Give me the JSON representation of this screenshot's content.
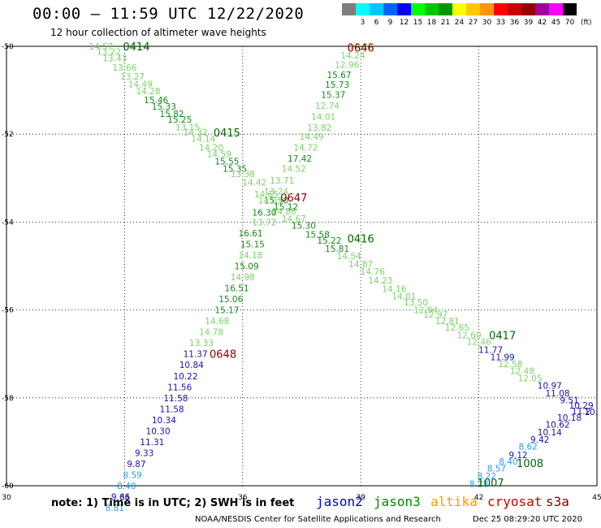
{
  "header": {
    "title": "00:00 – 11:59 UTC 12/22/2020",
    "subtitle": "12 hour collection of altimeter wave heights"
  },
  "legend_scale": {
    "unit": "(ft)",
    "bins": [
      {
        "label": "",
        "color": "#7f7f7f"
      },
      {
        "label": "3",
        "color": "#00ffff"
      },
      {
        "label": "6",
        "color": "#00c8ff"
      },
      {
        "label": "9",
        "color": "#0064ff"
      },
      {
        "label": "12",
        "color": "#0000ff"
      },
      {
        "label": "15",
        "color": "#00ff00"
      },
      {
        "label": "18",
        "color": "#00c800"
      },
      {
        "label": "21",
        "color": "#009600"
      },
      {
        "label": "24",
        "color": "#ffff00"
      },
      {
        "label": "27",
        "color": "#ffc800"
      },
      {
        "label": "30",
        "color": "#ff9600"
      },
      {
        "label": "33",
        "color": "#ff0000"
      },
      {
        "label": "36",
        "color": "#c80000"
      },
      {
        "label": "39",
        "color": "#960000"
      },
      {
        "label": "42",
        "color": "#a000a0"
      },
      {
        "label": "45",
        "color": "#ff00ff"
      },
      {
        "label": "70",
        "color": "#000000"
      }
    ]
  },
  "footer": {
    "note": "note: 1) Time is in UTC; 2) SWH is in feet",
    "satellites": [
      {
        "name": "jason2",
        "color": "#0000cc"
      },
      {
        "name": "jason3",
        "color": "#008800"
      },
      {
        "name": "altika",
        "color": "#ff9900"
      },
      {
        "name": "cryosat",
        "color": "#cc0000"
      },
      {
        "name": "s3a",
        "color": "#880000"
      }
    ],
    "credit": "NOAA/NESDIS Center for Satellite Applications and Research",
    "timestamp": "Dec 25 08:29:20 UTC 2020"
  },
  "chart_data": {
    "type": "scatter",
    "x_range": [
      30,
      45
    ],
    "y_range": [
      -60,
      -50
    ],
    "x_ticks": [
      "30",
      "33",
      "36",
      "39",
      "42",
      "45"
    ],
    "y_ticks": [
      "-50",
      "-52",
      "-54",
      "-56",
      "-58",
      "-60"
    ],
    "grid": true,
    "colors": {
      "light": "#7cd36a",
      "green": "#168a1a",
      "blue": "#1a14a8",
      "cyan": "#2a9ee0",
      "time": "#8b0000",
      "time_green": "#006400"
    },
    "time_labels": [
      {
        "text": "0414",
        "x": 33.3,
        "y": -50.0,
        "c": "time_green"
      },
      {
        "text": "0415",
        "x": 35.6,
        "y": -51.96,
        "c": "time_green"
      },
      {
        "text": "0416",
        "x": 39.0,
        "y": -54.37,
        "c": "time_green"
      },
      {
        "text": "0417",
        "x": 42.6,
        "y": -56.57,
        "c": "time_green"
      },
      {
        "text": "0646",
        "x": 39.0,
        "y": -50.03,
        "c": "time"
      },
      {
        "text": "0647",
        "x": 37.3,
        "y": -53.44,
        "c": "time"
      },
      {
        "text": "0648",
        "x": 35.5,
        "y": -57.0,
        "c": "time"
      },
      {
        "text": "1008",
        "x": 43.3,
        "y": -59.48,
        "c": "time_green"
      },
      {
        "text": "1007",
        "x": 42.3,
        "y": -59.93,
        "c": "time_green"
      }
    ],
    "series": [
      {
        "name": "jason3",
        "points": [
          {
            "x": 32.4,
            "y": -50.0,
            "v": "14.57",
            "c": "light"
          },
          {
            "x": 32.6,
            "y": -50.12,
            "v": "13.22",
            "c": "light"
          },
          {
            "x": 32.75,
            "y": -50.27,
            "v": "13.43",
            "c": "light"
          },
          {
            "x": 33.0,
            "y": -50.48,
            "v": "13.66",
            "c": "light"
          },
          {
            "x": 33.2,
            "y": -50.68,
            "v": "13.27",
            "c": "light"
          },
          {
            "x": 33.4,
            "y": -50.86,
            "v": "14.49",
            "c": "light"
          },
          {
            "x": 33.6,
            "y": -51.02,
            "v": "14.28",
            "c": "light"
          },
          {
            "x": 33.8,
            "y": -51.22,
            "v": "15.46",
            "c": "green"
          },
          {
            "x": 34.0,
            "y": -51.37,
            "v": "15.33",
            "c": "green"
          },
          {
            "x": 34.2,
            "y": -51.53,
            "v": "15.82",
            "c": "green"
          },
          {
            "x": 34.4,
            "y": -51.66,
            "v": "15.25",
            "c": "green"
          },
          {
            "x": 34.6,
            "y": -51.84,
            "v": "13.15",
            "c": "light"
          },
          {
            "x": 34.8,
            "y": -51.95,
            "v": "14.32",
            "c": "light"
          },
          {
            "x": 35.0,
            "y": -52.1,
            "v": "14.14",
            "c": "light"
          },
          {
            "x": 35.2,
            "y": -52.3,
            "v": "14.20",
            "c": "light"
          },
          {
            "x": 35.4,
            "y": -52.45,
            "v": "14.59",
            "c": "light"
          },
          {
            "x": 35.6,
            "y": -52.62,
            "v": "15.55",
            "c": "green"
          },
          {
            "x": 35.8,
            "y": -52.78,
            "v": "15.35",
            "c": "green"
          },
          {
            "x": 36.0,
            "y": -52.9,
            "v": "13.38",
            "c": "light"
          },
          {
            "x": 36.3,
            "y": -53.1,
            "v": "14.42",
            "c": "light"
          },
          {
            "x": 36.6,
            "y": -53.36,
            "v": "14.65",
            "c": "light"
          },
          {
            "x": 36.85,
            "y": -53.5,
            "v": "15.30",
            "c": "green"
          },
          {
            "x": 37.05,
            "y": -53.75,
            "v": "14.86",
            "c": "light"
          },
          {
            "x": 37.3,
            "y": -53.92,
            "v": "14.67",
            "c": "light"
          },
          {
            "x": 37.55,
            "y": -54.08,
            "v": "15.30",
            "c": "green"
          },
          {
            "x": 37.9,
            "y": -54.28,
            "v": "15.58",
            "c": "green"
          },
          {
            "x": 38.2,
            "y": -54.42,
            "v": "15.22",
            "c": "green"
          },
          {
            "x": 38.4,
            "y": -54.6,
            "v": "15.81",
            "c": "green"
          },
          {
            "x": 38.7,
            "y": -54.77,
            "v": "14.54",
            "c": "light"
          },
          {
            "x": 39.0,
            "y": -54.95,
            "v": "14.87",
            "c": "light"
          },
          {
            "x": 39.3,
            "y": -55.12,
            "v": "14.76",
            "c": "light"
          },
          {
            "x": 39.5,
            "y": -55.32,
            "v": "14.23",
            "c": "light"
          },
          {
            "x": 39.85,
            "y": -55.52,
            "v": "14.16",
            "c": "light"
          },
          {
            "x": 40.1,
            "y": -55.68,
            "v": "14.01",
            "c": "light"
          },
          {
            "x": 40.4,
            "y": -55.82,
            "v": "13.50",
            "c": "light"
          },
          {
            "x": 40.65,
            "y": -56.0,
            "v": "12.94",
            "c": "light"
          },
          {
            "x": 40.9,
            "y": -56.1,
            "v": "12.97",
            "c": "light"
          },
          {
            "x": 41.2,
            "y": -56.25,
            "v": "12.81",
            "c": "light"
          },
          {
            "x": 41.45,
            "y": -56.4,
            "v": "12.65",
            "c": "light"
          },
          {
            "x": 41.75,
            "y": -56.57,
            "v": "12.60",
            "c": "light"
          },
          {
            "x": 42.0,
            "y": -56.72,
            "v": "12.46",
            "c": "light"
          },
          {
            "x": 42.3,
            "y": -56.9,
            "v": "11.77",
            "c": "blue"
          },
          {
            "x": 42.6,
            "y": -57.07,
            "v": "11.99",
            "c": "blue"
          },
          {
            "x": 42.8,
            "y": -57.23,
            "v": "12.58",
            "c": "light"
          },
          {
            "x": 43.1,
            "y": -57.38,
            "v": "12.48",
            "c": "light"
          },
          {
            "x": 43.3,
            "y": -57.55,
            "v": "12.05",
            "c": "light"
          },
          {
            "x": 43.8,
            "y": -57.72,
            "v": "10.97",
            "c": "blue"
          },
          {
            "x": 44.0,
            "y": -57.89,
            "v": "11.08",
            "c": "blue"
          },
          {
            "x": 44.3,
            "y": -58.05,
            "v": "9.51",
            "c": "blue"
          },
          {
            "x": 44.6,
            "y": -58.17,
            "v": "10.29",
            "c": "blue"
          },
          {
            "x": 44.85,
            "y": -58.32,
            "v": "10.",
            "c": "blue"
          }
        ]
      },
      {
        "name": "s3a",
        "points": [
          {
            "x": 39.0,
            "y": -50.0,
            "v": "13.02",
            "c": "light"
          },
          {
            "x": 38.8,
            "y": -50.2,
            "v": "14.24",
            "c": "light"
          },
          {
            "x": 38.65,
            "y": -50.42,
            "v": "12.96",
            "c": "light"
          },
          {
            "x": 38.45,
            "y": -50.65,
            "v": "15.67",
            "c": "green"
          },
          {
            "x": 38.4,
            "y": -50.87,
            "v": "15.73",
            "c": "green"
          },
          {
            "x": 38.3,
            "y": -51.1,
            "v": "15.37",
            "c": "green"
          },
          {
            "x": 38.15,
            "y": -51.35,
            "v": "12.74",
            "c": "light"
          },
          {
            "x": 38.05,
            "y": -51.6,
            "v": "14.01",
            "c": "light"
          },
          {
            "x": 37.95,
            "y": -51.85,
            "v": "13.82",
            "c": "light"
          },
          {
            "x": 37.75,
            "y": -52.05,
            "v": "14.49",
            "c": "light"
          },
          {
            "x": 37.6,
            "y": -52.3,
            "v": "14.72",
            "c": "light"
          },
          {
            "x": 37.45,
            "y": -52.55,
            "v": "17.42",
            "c": "green"
          },
          {
            "x": 37.3,
            "y": -52.78,
            "v": "14.52",
            "c": "light"
          },
          {
            "x": 37.0,
            "y": -53.05,
            "v": "13.71",
            "c": "light"
          },
          {
            "x": 36.85,
            "y": -53.3,
            "v": "13.24",
            "c": "light"
          },
          {
            "x": 36.7,
            "y": -53.5,
            "v": "14.05",
            "c": "light"
          },
          {
            "x": 37.1,
            "y": -53.65,
            "v": "15.12",
            "c": "green"
          },
          {
            "x": 36.55,
            "y": -53.78,
            "v": "16.30",
            "c": "green"
          },
          {
            "x": 36.55,
            "y": -54.0,
            "v": "13.72",
            "c": "light"
          },
          {
            "x": 36.2,
            "y": -54.25,
            "v": "16.61",
            "c": "green"
          },
          {
            "x": 36.25,
            "y": -54.5,
            "v": "15.15",
            "c": "green"
          },
          {
            "x": 36.2,
            "y": -54.75,
            "v": "14.18",
            "c": "light"
          },
          {
            "x": 36.1,
            "y": -55.0,
            "v": "15.09",
            "c": "green"
          },
          {
            "x": 36.0,
            "y": -55.25,
            "v": "14.98",
            "c": "light"
          },
          {
            "x": 35.85,
            "y": -55.5,
            "v": "16.51",
            "c": "green"
          },
          {
            "x": 35.7,
            "y": -55.75,
            "v": "15.06",
            "c": "green"
          },
          {
            "x": 35.6,
            "y": -56.0,
            "v": "15.17",
            "c": "green"
          },
          {
            "x": 35.35,
            "y": -56.25,
            "v": "14.68",
            "c": "light"
          },
          {
            "x": 35.2,
            "y": -56.5,
            "v": "14.78",
            "c": "light"
          },
          {
            "x": 34.95,
            "y": -56.75,
            "v": "13.33",
            "c": "light"
          },
          {
            "x": 34.8,
            "y": -57.0,
            "v": "11.37",
            "c": "blue"
          },
          {
            "x": 34.7,
            "y": -57.25,
            "v": "10.84",
            "c": "blue"
          },
          {
            "x": 34.55,
            "y": -57.5,
            "v": "10.22",
            "c": "blue"
          },
          {
            "x": 34.4,
            "y": -57.75,
            "v": "11.56",
            "c": "blue"
          },
          {
            "x": 34.3,
            "y": -58.0,
            "v": "11.58",
            "c": "blue"
          },
          {
            "x": 34.2,
            "y": -58.25,
            "v": "11.58",
            "c": "blue"
          },
          {
            "x": 34.0,
            "y": -58.5,
            "v": "10.34",
            "c": "blue"
          },
          {
            "x": 33.85,
            "y": -58.75,
            "v": "10.30",
            "c": "blue"
          },
          {
            "x": 33.7,
            "y": -59.0,
            "v": "11.31",
            "c": "blue"
          },
          {
            "x": 33.5,
            "y": -59.25,
            "v": "9.33",
            "c": "blue"
          },
          {
            "x": 33.3,
            "y": -59.5,
            "v": "9.87",
            "c": "blue"
          },
          {
            "x": 33.2,
            "y": -59.75,
            "v": "8.59",
            "c": "cyan"
          },
          {
            "x": 33.05,
            "y": -60.0,
            "v": "8.40",
            "c": "cyan"
          },
          {
            "x": 32.9,
            "y": -60.25,
            "v": "9.66",
            "c": "blue"
          },
          {
            "x": 32.75,
            "y": -60.5,
            "v": "8.81",
            "c": "cyan"
          }
        ]
      },
      {
        "name": "cryosat",
        "points": [
          {
            "x": 42.0,
            "y": -59.95,
            "v": "8.28",
            "c": "cyan"
          },
          {
            "x": 42.2,
            "y": -59.78,
            "v": "8.22",
            "c": "cyan"
          },
          {
            "x": 42.45,
            "y": -59.6,
            "v": "8.57",
            "c": "cyan"
          },
          {
            "x": 42.75,
            "y": -59.45,
            "v": "8.40",
            "c": "cyan"
          },
          {
            "x": 43.0,
            "y": -59.3,
            "v": "9.12",
            "c": "blue"
          },
          {
            "x": 43.25,
            "y": -59.1,
            "v": "8.62",
            "c": "cyan"
          },
          {
            "x": 43.55,
            "y": -58.95,
            "v": "9.42",
            "c": "blue"
          },
          {
            "x": 43.8,
            "y": -58.78,
            "v": "10.14",
            "c": "blue"
          },
          {
            "x": 44.0,
            "y": -58.6,
            "v": "10.62",
            "c": "blue"
          },
          {
            "x": 44.3,
            "y": -58.45,
            "v": "10.18",
            "c": "blue"
          },
          {
            "x": 44.6,
            "y": -58.3,
            "v": "11.2",
            "c": "blue"
          }
        ]
      }
    ]
  }
}
